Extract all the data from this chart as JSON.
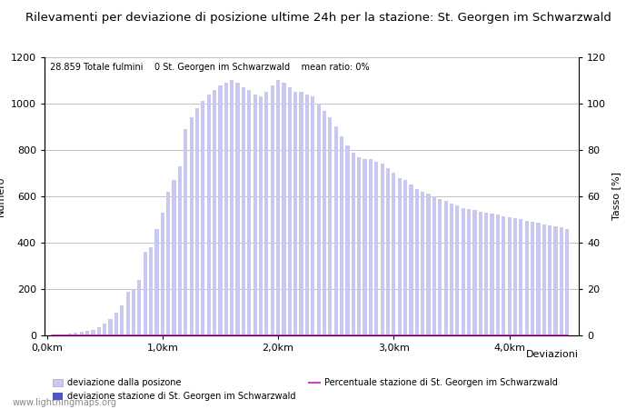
{
  "title": "Rilevamenti per deviazione di posizione ultime 24h per la stazione: St. Georgen im Schwarzwald",
  "ylabel_left": "Numero",
  "ylabel_right": "Tasso [%]",
  "xlabel_right": "Deviazioni",
  "annotation": "28.859 Totale fulmini    0 St. Georgen im Schwarzwald    mean ratio: 0%",
  "watermark": "www.lightningmaps.org",
  "ylim_left": [
    0,
    1200
  ],
  "ylim_right": [
    0,
    120
  ],
  "x_ticks": [
    0.0,
    1.0,
    2.0,
    3.0,
    4.0
  ],
  "x_tick_labels": [
    "0,0km",
    "1,0km",
    "2,0km",
    "3,0km",
    "4,0km"
  ],
  "bar_color_light": "#c8c8f0",
  "bar_color_dark": "#5555bb",
  "line_color": "#cc44cc",
  "grid_color": "#aaaaaa",
  "background_color": "#ffffff",
  "categories": [
    0.05,
    0.1,
    0.15,
    0.2,
    0.25,
    0.3,
    0.35,
    0.4,
    0.45,
    0.5,
    0.55,
    0.6,
    0.65,
    0.7,
    0.75,
    0.8,
    0.85,
    0.9,
    0.95,
    1.0,
    1.05,
    1.1,
    1.15,
    1.2,
    1.25,
    1.3,
    1.35,
    1.4,
    1.45,
    1.5,
    1.55,
    1.6,
    1.65,
    1.7,
    1.75,
    1.8,
    1.85,
    1.9,
    1.95,
    2.0,
    2.05,
    2.1,
    2.15,
    2.2,
    2.25,
    2.3,
    2.35,
    2.4,
    2.45,
    2.5,
    2.55,
    2.6,
    2.65,
    2.7,
    2.75,
    2.8,
    2.85,
    2.9,
    2.95,
    3.0,
    3.05,
    3.1,
    3.15,
    3.2,
    3.25,
    3.3,
    3.35,
    3.4,
    3.45,
    3.5,
    3.55,
    3.6,
    3.65,
    3.7,
    3.75,
    3.8,
    3.85,
    3.9,
    3.95,
    4.0,
    4.05,
    4.1,
    4.15,
    4.2,
    4.25,
    4.3,
    4.35,
    4.4,
    4.45,
    4.5
  ],
  "values": [
    2,
    3,
    5,
    8,
    10,
    15,
    20,
    25,
    35,
    50,
    70,
    100,
    130,
    190,
    200,
    240,
    360,
    380,
    460,
    530,
    620,
    670,
    730,
    890,
    940,
    980,
    1010,
    1040,
    1060,
    1080,
    1090,
    1100,
    1090,
    1070,
    1060,
    1040,
    1030,
    1050,
    1080,
    1100,
    1090,
    1070,
    1050,
    1050,
    1040,
    1030,
    1000,
    970,
    940,
    900,
    860,
    820,
    790,
    770,
    760,
    760,
    750,
    740,
    720,
    700,
    680,
    670,
    650,
    630,
    620,
    610,
    600,
    590,
    580,
    570,
    560,
    550,
    545,
    540,
    535,
    530,
    525,
    520,
    515,
    510,
    505,
    500,
    495,
    490,
    485,
    480,
    475,
    470,
    465,
    460
  ],
  "station_values": [
    0,
    0,
    0,
    0,
    0,
    0,
    0,
    0,
    0,
    0,
    0,
    0,
    0,
    0,
    0,
    0,
    0,
    0,
    0,
    0,
    0,
    0,
    0,
    0,
    0,
    0,
    0,
    0,
    0,
    0,
    0,
    0,
    0,
    0,
    0,
    0,
    0,
    0,
    0,
    0,
    0,
    0,
    0,
    0,
    0,
    0,
    0,
    0,
    0,
    0,
    0,
    0,
    0,
    0,
    0,
    0,
    0,
    0,
    0,
    0,
    0,
    0,
    0,
    0,
    0,
    0,
    0,
    0,
    0,
    0,
    0,
    0,
    0,
    0,
    0,
    0,
    0,
    0,
    0,
    0,
    0,
    0,
    0,
    0,
    0,
    0,
    0,
    0,
    0,
    0
  ],
  "percentage_values": [
    0,
    0,
    0,
    0,
    0,
    0,
    0,
    0,
    0,
    0,
    0,
    0,
    0,
    0,
    0,
    0,
    0,
    0,
    0,
    0,
    0,
    0,
    0,
    0,
    0,
    0,
    0,
    0,
    0,
    0,
    0,
    0,
    0,
    0,
    0,
    0,
    0,
    0,
    0,
    0,
    0,
    0,
    0,
    0,
    0,
    0,
    0,
    0,
    0,
    0,
    0,
    0,
    0,
    0,
    0,
    0,
    0,
    0,
    0,
    0,
    0,
    0,
    0,
    0,
    0,
    0,
    0,
    0,
    0,
    0,
    0,
    0,
    0,
    0,
    0,
    0,
    0,
    0,
    0,
    0,
    0,
    0,
    0,
    0,
    0,
    0,
    0,
    0,
    0,
    0
  ],
  "legend_light_label": "deviazione dalla posizone",
  "legend_dark_label": "deviazione stazione di St. Georgen im Schwarzwald",
  "legend_line_label": "Percentuale stazione di St. Georgen im Schwarzwald",
  "font_size_title": 9.5,
  "font_size_labels": 8,
  "font_size_annotation": 7,
  "font_size_ticks": 8,
  "font_size_legend": 7,
  "font_size_watermark": 7
}
